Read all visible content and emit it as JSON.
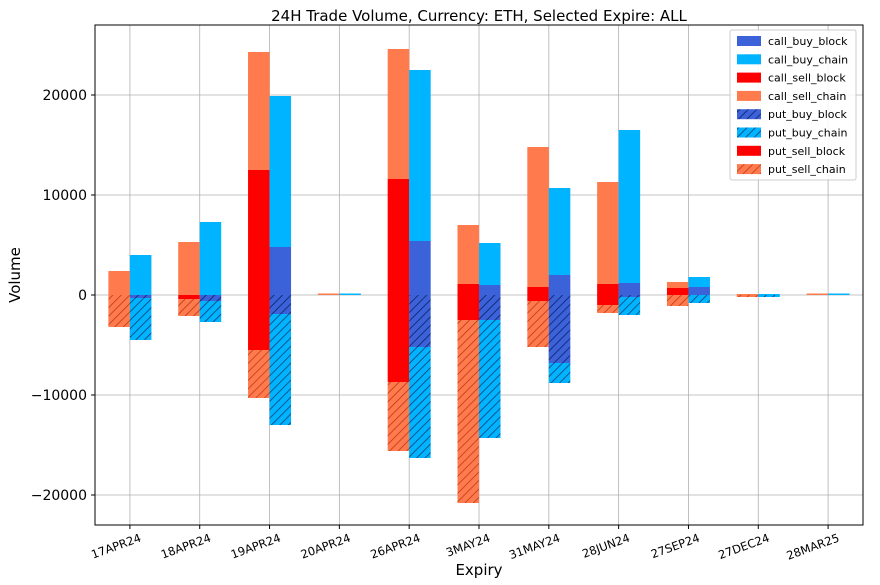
{
  "chart_data": {
    "type": "bar",
    "title": "24H Trade Volume, Currency: ETH, Selected Expire: ALL",
    "xlabel": "Expiry",
    "ylabel": "Volume",
    "ylim": [
      -23000,
      27000
    ],
    "yticks": [
      -20000,
      -10000,
      0,
      10000,
      20000
    ],
    "ytick_labels": [
      "−20000",
      "−10000",
      "0",
      "10000",
      "20000"
    ],
    "grid": true,
    "legend_position": "top-right",
    "categories": [
      "17APR24",
      "18APR24",
      "19APR24",
      "20APR24",
      "26APR24",
      "3MAY24",
      "31MAY24",
      "28JUN24",
      "27SEP24",
      "27DEC24",
      "28MAR25"
    ],
    "series": [
      {
        "name": "call_buy_block",
        "side": "call",
        "group": "buy",
        "kind": "block",
        "color": "#3c62d9",
        "hatched": false,
        "values": [
          0,
          0,
          4800,
          0,
          5400,
          1000,
          2000,
          1200,
          800,
          0,
          0
        ]
      },
      {
        "name": "call_buy_chain",
        "side": "call",
        "group": "buy",
        "kind": "chain",
        "color": "#00b4ff",
        "hatched": false,
        "values": [
          4000,
          7300,
          15100,
          150,
          17100,
          4200,
          8700,
          15300,
          1000,
          100,
          150
        ]
      },
      {
        "name": "call_sell_block",
        "side": "call",
        "group": "sell",
        "kind": "block",
        "color": "#ff0000",
        "hatched": false,
        "values": [
          0,
          0,
          12500,
          0,
          11600,
          1100,
          800,
          1100,
          700,
          0,
          0
        ]
      },
      {
        "name": "call_sell_chain",
        "side": "call",
        "group": "sell",
        "kind": "chain",
        "color": "#ff7a4d",
        "hatched": false,
        "values": [
          2400,
          5300,
          11800,
          150,
          13000,
          5900,
          14000,
          10200,
          600,
          100,
          150
        ]
      },
      {
        "name": "put_buy_block",
        "side": "put",
        "group": "buy",
        "kind": "block",
        "color": "#3c62d9",
        "hatched": true,
        "values": [
          -300,
          -600,
          -1900,
          0,
          -5200,
          -2500,
          -6800,
          -200,
          0,
          0,
          0
        ]
      },
      {
        "name": "put_buy_chain",
        "side": "put",
        "group": "buy",
        "kind": "chain",
        "color": "#00b4ff",
        "hatched": true,
        "values": [
          -4200,
          -2100,
          -11100,
          0,
          -11100,
          -11800,
          -2000,
          -1800,
          -800,
          -200,
          0
        ]
      },
      {
        "name": "put_sell_block",
        "side": "put",
        "group": "sell",
        "kind": "block",
        "color": "#ff0000",
        "hatched": false,
        "values": [
          0,
          -400,
          -5500,
          0,
          -8700,
          -2500,
          -600,
          -1000,
          0,
          0,
          0
        ]
      },
      {
        "name": "put_sell_chain",
        "side": "put",
        "group": "sell",
        "kind": "chain",
        "color": "#ff7a4d",
        "hatched": true,
        "values": [
          -3200,
          -1700,
          -4800,
          0,
          -6900,
          -18300,
          -4600,
          -800,
          -1100,
          -200,
          0
        ]
      }
    ]
  }
}
